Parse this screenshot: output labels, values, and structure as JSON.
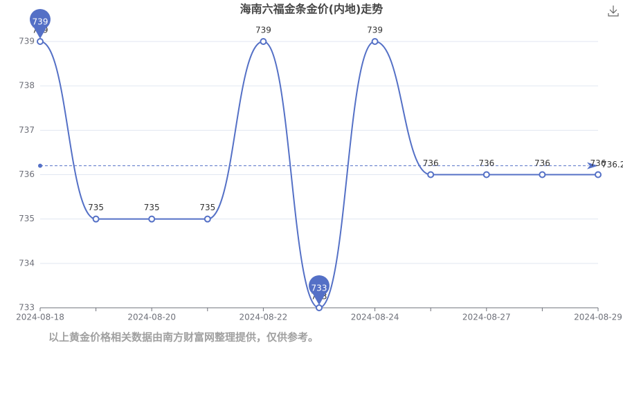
{
  "chart_data": {
    "type": "line",
    "title": "海南六福金条金价(内地)走势",
    "categories": [
      "2024-08-18",
      null,
      "2024-08-20",
      null,
      "2024-08-22",
      null,
      "2024-08-24",
      null,
      "2024-08-27",
      null,
      "2024-08-29"
    ],
    "values": [
      739,
      735,
      735,
      735,
      739,
      733,
      739,
      736,
      736,
      736,
      736
    ],
    "color": "#5470c6",
    "ylim": [
      733,
      739
    ],
    "yticks": [
      733,
      734,
      735,
      736,
      737,
      738,
      739
    ],
    "grid": true,
    "smooth": true,
    "average": 736.2,
    "note": "以上黄金价格相关数据由南方财富网整理提供，仅供参考。"
  }
}
